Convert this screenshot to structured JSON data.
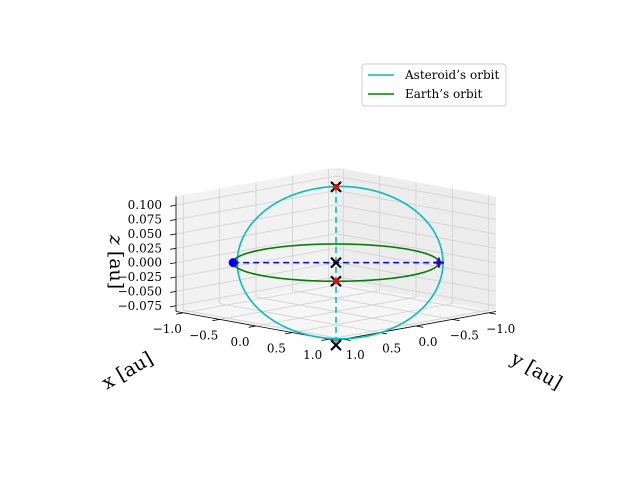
{
  "chart_data": {
    "type": "line",
    "projection": "3d",
    "axes": {
      "x": {
        "label": "x [au]",
        "ticks": [
          "−1.0",
          "−0.5",
          "0.0",
          "0.5",
          "1.0"
        ],
        "values": [
          -1.0,
          -0.5,
          0.0,
          0.5,
          1.0
        ],
        "lim": [
          -1.1,
          1.1
        ]
      },
      "y": {
        "label": "y [au]",
        "ticks": [
          "−1.0",
          "−0.5",
          "0.0",
          "0.5",
          "1.0"
        ],
        "values": [
          -1.0,
          -0.5,
          0.0,
          0.5,
          1.0
        ],
        "lim": [
          -1.1,
          1.1
        ]
      },
      "z": {
        "label": "z",
        "unit_label": "[au]",
        "ticks": [
          "−0.075",
          "−0.050",
          "−0.025",
          "0.000",
          "0.025",
          "0.050",
          "0.075",
          "0.100"
        ],
        "values": [
          -0.075,
          -0.05,
          -0.025,
          0.0,
          0.025,
          0.05,
          0.075,
          0.1
        ],
        "lim": [
          -0.085,
          0.115
        ]
      }
    },
    "grid": true,
    "legend": {
      "placement": "top-right"
    },
    "series": [
      {
        "name": "Asteroid’s orbit",
        "color": "#00bfbf",
        "style": "solid",
        "kind": "ellipse",
        "a": 1.0,
        "e": 0.04,
        "inclination_deg": 6.0,
        "node_deg": 135,
        "peri_deg": 0
      },
      {
        "name": "Earth’s orbit",
        "color": "#008000",
        "style": "solid",
        "kind": "circle",
        "r": 1.0,
        "z": 0.0
      }
    ],
    "lines": [
      {
        "kind": "line-of-apsides",
        "color": "#00bfbf",
        "style": "dashed",
        "from": [
          -0.67,
          -0.67,
          0.101
        ],
        "to": [
          0.73,
          0.73,
          -0.11
        ]
      },
      {
        "kind": "line-of-nodes",
        "color": "#0000ff",
        "style": "dashed",
        "from": [
          -0.7071,
          0.7071,
          0.0
        ],
        "to": [
          0.7071,
          -0.7071,
          0.0
        ]
      }
    ],
    "markers": [
      {
        "kind": "x",
        "color": "#000000",
        "x": -0.67,
        "y": -0.67,
        "z": 0.101
      },
      {
        "kind": "x",
        "color": "#000000",
        "x": 0.73,
        "y": 0.73,
        "z": -0.11
      },
      {
        "kind": "x",
        "color": "#000000",
        "x": 0.0,
        "y": 0.0,
        "z": 0.0
      },
      {
        "kind": "x",
        "color": "#000000",
        "x": 0.7071,
        "y": 0.7071,
        "z": 0.0
      },
      {
        "kind": "dot",
        "color": "#ff0000",
        "x": -0.67,
        "y": -0.67,
        "z": 0.101
      },
      {
        "kind": "dot",
        "color": "#ff0000",
        "x": 0.7071,
        "y": 0.7071,
        "z": 0.0
      },
      {
        "kind": "dot",
        "color": "#ff0000",
        "x": 0.7071,
        "y": -0.7071,
        "z": 0.0
      },
      {
        "kind": "dot",
        "color": "#0000ff",
        "x": -0.7071,
        "y": 0.7071,
        "z": 0.0
      },
      {
        "kind": "plus",
        "color": "#0000ff",
        "x": 0.7071,
        "y": -0.7071,
        "z": 0.0
      }
    ]
  }
}
